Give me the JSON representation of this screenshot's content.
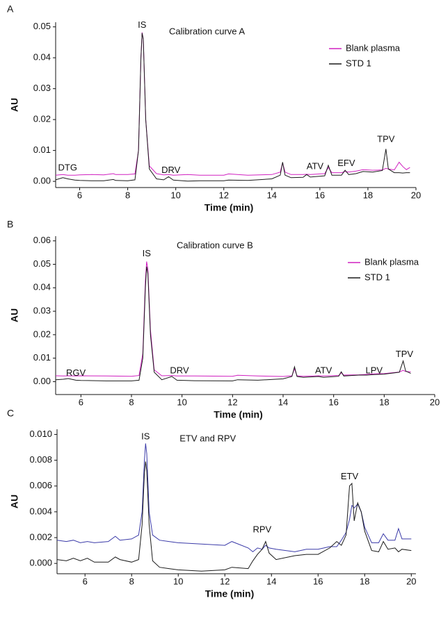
{
  "chart_data": [
    {
      "type": "line",
      "panel_label": "A",
      "title": "Calibration curve  A",
      "xlabel": "Time (min)",
      "ylabel": "AU",
      "xlim": [
        5,
        20
      ],
      "ylim": [
        -0.002,
        0.0515
      ],
      "xticks": [
        6,
        8,
        10,
        12,
        14,
        16,
        18,
        20
      ],
      "yticks": [
        {
          "value": 0,
          "label": "0.00"
        },
        0.01,
        0.02,
        0.03,
        0.04,
        0.05
      ],
      "grid": false,
      "legend": "upper right",
      "x": [
        5,
        5.3,
        5.5,
        5.8,
        6,
        6.5,
        7,
        7.4,
        7.5,
        8,
        8.3,
        8.45,
        8.55,
        8.6,
        8.65,
        8.75,
        8.9,
        9.2,
        9.5,
        9.7,
        9.9,
        10.5,
        11,
        12,
        12.2,
        13,
        14,
        14.35,
        14.45,
        14.55,
        14.8,
        15.3,
        15.45,
        15.6,
        16.2,
        16.35,
        16.5,
        16.9,
        17.05,
        17.2,
        17.5,
        17.8,
        18.2,
        18.6,
        18.75,
        18.85,
        19.1,
        19.3,
        19.45,
        19.6,
        19.75
      ],
      "series": [
        {
          "name": "Blank plasma",
          "color": "#d020c0",
          "values": [
            0.002,
            0.0022,
            0.002,
            0.002,
            0.0021,
            0.0022,
            0.0021,
            0.0025,
            0.0022,
            0.0022,
            0.0024,
            0.01,
            0.04,
            0.0482,
            0.046,
            0.02,
            0.005,
            0.0025,
            0.0021,
            0.0022,
            0.002,
            0.0022,
            0.002,
            0.002,
            0.0024,
            0.002,
            0.0022,
            0.003,
            0.006,
            0.003,
            0.0022,
            0.0022,
            0.0023,
            0.0022,
            0.0025,
            0.0045,
            0.0028,
            0.0028,
            0.0032,
            0.003,
            0.0033,
            0.0038,
            0.0036,
            0.0037,
            0.0042,
            0.004,
            0.0037,
            0.0062,
            0.0048,
            0.0038,
            0.0045
          ]
        },
        {
          "name": "STD 1",
          "color": "#1a1a1a",
          "values": [
            0.0005,
            0.0012,
            0.0008,
            0.0004,
            0.0003,
            0.0002,
            0.0002,
            0.0006,
            0.0003,
            0.0002,
            0.0005,
            0.01,
            0.04,
            0.048,
            0.046,
            0.02,
            0.004,
            0.0008,
            0.0005,
            0.0015,
            0.0004,
            0.0001,
            0.0002,
            0.0002,
            0.0004,
            0.0003,
            0.0008,
            0.002,
            0.0062,
            0.002,
            0.0012,
            0.0013,
            0.0022,
            0.0014,
            0.0018,
            0.0052,
            0.002,
            0.002,
            0.0036,
            0.0022,
            0.0025,
            0.0032,
            0.003,
            0.0035,
            0.0105,
            0.004,
            0.0028,
            0.0028,
            0.0027,
            0.0028,
            0.0028
          ]
        }
      ],
      "annotations": [
        {
          "text": "DTG",
          "x": 5.5,
          "y": 0.0043
        },
        {
          "text": "IS",
          "x": 8.6,
          "y": 0.0505
        },
        {
          "text": "DRV",
          "x": 9.8,
          "y": 0.0035
        },
        {
          "text": "ATV",
          "x": 15.8,
          "y": 0.0047
        },
        {
          "text": "EFV",
          "x": 17.1,
          "y": 0.0057
        },
        {
          "text": "TPV",
          "x": 18.75,
          "y": 0.0135
        }
      ]
    },
    {
      "type": "line",
      "panel_label": "B",
      "title": "Calibration curve  B",
      "xlabel": "Time (min)",
      "ylabel": "AU",
      "xlim": [
        5,
        20
      ],
      "ylim": [
        -0.0055,
        0.062
      ],
      "xticks": [
        6,
        8,
        10,
        12,
        14,
        16,
        18,
        20
      ],
      "yticks": [
        {
          "value": 0,
          "label": "0.00"
        },
        0.01,
        0.02,
        0.03,
        0.04,
        0.05,
        0.06
      ],
      "grid": false,
      "legend": "upper right",
      "x": [
        5,
        5.3,
        5.5,
        5.8,
        6,
        7,
        8,
        8.3,
        8.45,
        8.55,
        8.6,
        8.65,
        8.75,
        8.9,
        9.2,
        9.6,
        9.8,
        10.5,
        12,
        12.2,
        13,
        14,
        14.35,
        14.45,
        14.55,
        14.8,
        15.4,
        15.6,
        16.2,
        16.3,
        16.4,
        17,
        17.3,
        17.6,
        18,
        18.6,
        18.75,
        18.85,
        19.05
      ],
      "series": [
        {
          "name": "Blank plasma",
          "color": "#d020c0",
          "values": [
            0.0025,
            0.0024,
            0.0025,
            0.0024,
            0.0025,
            0.0024,
            0.0023,
            0.0026,
            0.012,
            0.043,
            0.0512,
            0.048,
            0.022,
            0.005,
            0.0025,
            0.0026,
            0.0024,
            0.0024,
            0.0023,
            0.0027,
            0.0024,
            0.0022,
            0.0025,
            0.0055,
            0.0025,
            0.0023,
            0.0025,
            0.0024,
            0.0026,
            0.0038,
            0.0028,
            0.0029,
            0.0031,
            0.0033,
            0.0034,
            0.0041,
            0.0048,
            0.0043,
            0.0042
          ]
        },
        {
          "name": "STD 1",
          "color": "#1a1a1a",
          "values": [
            0.0008,
            0.001,
            0.0013,
            0.0006,
            0.0005,
            0.0003,
            0.0003,
            0.0006,
            0.01,
            0.04,
            0.049,
            0.046,
            0.02,
            0.004,
            0.0008,
            0.0022,
            0.0006,
            0.0004,
            0.0003,
            0.0008,
            0.0006,
            0.0012,
            0.0022,
            0.0063,
            0.0022,
            0.0018,
            0.0022,
            0.0018,
            0.0023,
            0.0042,
            0.0024,
            0.0028,
            0.0028,
            0.003,
            0.0032,
            0.004,
            0.0088,
            0.0045,
            0.0035
          ]
        }
      ],
      "annotations": [
        {
          "text": "RGV",
          "x": 5.8,
          "y": 0.0035
        },
        {
          "text": "IS",
          "x": 8.6,
          "y": 0.0545
        },
        {
          "text": "DRV",
          "x": 9.9,
          "y": 0.0045
        },
        {
          "text": "ATV",
          "x": 15.6,
          "y": 0.0045
        },
        {
          "text": "LPV",
          "x": 17.6,
          "y": 0.0045
        },
        {
          "text": "TPV",
          "x": 18.8,
          "y": 0.0115
        }
      ]
    },
    {
      "type": "line",
      "panel_label": "C",
      "title": "ETV and RPV",
      "xlabel": "Time (min)",
      "ylabel": "AU",
      "xlim": [
        4.8,
        20.2
      ],
      "ylim": [
        -0.0008,
        0.0104
      ],
      "xticks": [
        6,
        8,
        10,
        12,
        14,
        16,
        18,
        20
      ],
      "yticks": [
        {
          "value": 0,
          "label": "0.000"
        },
        0.002,
        0.004,
        0.006,
        0.008,
        {
          "value": 0.01,
          "label": "0.010"
        }
      ],
      "grid": false,
      "x": [
        4.8,
        5.2,
        5.5,
        5.8,
        6.1,
        6.4,
        7,
        7.3,
        7.5,
        8,
        8.3,
        8.45,
        8.55,
        8.6,
        8.65,
        8.75,
        8.9,
        9.2,
        9.6,
        10,
        11,
        12,
        12.3,
        13,
        13.2,
        13.4,
        13.6,
        13.75,
        13.9,
        14.2,
        15,
        15.5,
        16,
        16.5,
        16.8,
        17,
        17.2,
        17.35,
        17.45,
        17.55,
        17.7,
        17.85,
        18,
        18.3,
        18.6,
        18.8,
        19,
        19.3,
        19.45,
        19.6,
        20
      ],
      "series": [
        {
          "color": "#3a3aa8",
          "values": [
            0.0018,
            0.0017,
            0.0018,
            0.0016,
            0.0017,
            0.0016,
            0.0017,
            0.0021,
            0.0018,
            0.0019,
            0.0022,
            0.004,
            0.008,
            0.0093,
            0.0085,
            0.004,
            0.0022,
            0.0018,
            0.0017,
            0.0016,
            0.0015,
            0.0014,
            0.0017,
            0.0012,
            0.0009,
            0.0012,
            0.0011,
            0.0014,
            0.0012,
            0.0011,
            0.0009,
            0.0011,
            0.0011,
            0.0013,
            0.0013,
            0.0018,
            0.0024,
            0.0034,
            0.0045,
            0.0043,
            0.0046,
            0.004,
            0.0028,
            0.0016,
            0.0016,
            0.0023,
            0.0018,
            0.0018,
            0.0027,
            0.0019,
            0.0019
          ]
        },
        {
          "color": "#1a1a1a",
          "values": [
            0.0003,
            0.0002,
            0.0004,
            0.0002,
            0.0004,
            0.0001,
            0.0001,
            0.0005,
            0.0003,
            0.0001,
            0.0003,
            0.003,
            0.007,
            0.0079,
            0.0072,
            0.003,
            0.0002,
            -0.0003,
            -0.0004,
            -0.0005,
            -0.0006,
            -0.0005,
            -0.0003,
            -0.0004,
            0.0002,
            0.0007,
            0.0011,
            0.0017,
            0.0008,
            0.0003,
            0.0006,
            0.0007,
            0.0007,
            0.0012,
            0.0017,
            0.0014,
            0.0022,
            0.006,
            0.0062,
            0.0033,
            0.0047,
            0.004,
            0.0025,
            0.001,
            0.0009,
            0.0017,
            0.0011,
            0.0012,
            0.0009,
            0.0011,
            0.001
          ]
        }
      ],
      "annotations": [
        {
          "text": "IS",
          "x": 8.6,
          "y": 0.0098
        },
        {
          "text": "RPV",
          "x": 13.6,
          "y": 0.0026
        },
        {
          "text": "ETV",
          "x": 17.35,
          "y": 0.0067
        }
      ]
    }
  ]
}
